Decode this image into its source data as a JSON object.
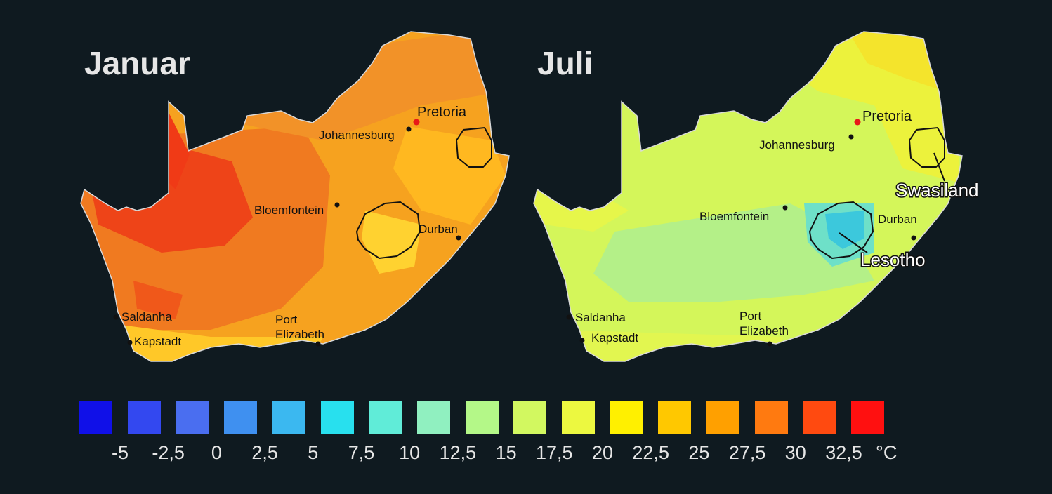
{
  "maps": [
    {
      "title": "Januar",
      "cities": [
        "Pretoria",
        "Johannesburg",
        "Bloemfontein",
        "Durban",
        "Saldanha",
        "Kapstadt",
        "Port",
        "Elizabeth"
      ]
    },
    {
      "title": "Juli",
      "cities": [
        "Pretoria",
        "Johannesburg",
        "Bloemfontein",
        "Durban",
        "Saldanha",
        "Kapstadt",
        "Port",
        "Elizabeth"
      ],
      "regions": [
        "Swasiland",
        "Lesotho"
      ]
    }
  ],
  "legend": {
    "colors": [
      "#1010e8",
      "#3348f0",
      "#4a6ef0",
      "#3f90f0",
      "#3bb8f0",
      "#28e0ee",
      "#60ecd8",
      "#90f0c0",
      "#b4f888",
      "#d2f860",
      "#ecf840",
      "#fff000",
      "#ffc800",
      "#ffa000",
      "#ff7a10",
      "#ff4a10",
      "#ff1010"
    ],
    "labels": [
      "-5",
      "-2,5",
      "0",
      "2,5",
      "5",
      "7,5",
      "10",
      "12,5",
      "15",
      "17,5",
      "20",
      "22,5",
      "25",
      "27,5",
      "30",
      "32,5",
      "°C"
    ]
  }
}
